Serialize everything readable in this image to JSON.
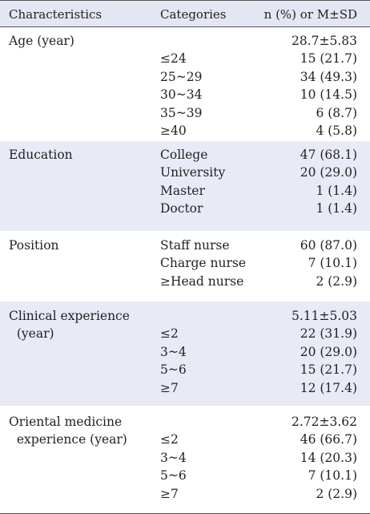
{
  "header": {
    "characteristics": "Characteristics",
    "categories": "Categories",
    "value": "n (%) or M±SD"
  },
  "groups": [
    {
      "shaded": false,
      "lines": [
        {
          "c1": "Age (year)",
          "c2": "",
          "c3": "28.7±5.83"
        },
        {
          "c1": "",
          "c2": "≤24",
          "c3": "15 (21.7)"
        },
        {
          "c1": "",
          "c2": "25~29",
          "c3": "34 (49.3)"
        },
        {
          "c1": "",
          "c2": "30~34",
          "c3": "10 (14.5)"
        },
        {
          "c1": "",
          "c2": "35~39",
          "c3": "6 (8.7)"
        },
        {
          "c1": "",
          "c2": "≥40",
          "c3": "4 (5.8)"
        }
      ]
    },
    {
      "shaded": true,
      "lines": [
        {
          "c1": "Education",
          "c2": "College",
          "c3": "47 (68.1)"
        },
        {
          "c1": "",
          "c2": "University",
          "c3": "20 (29.0)"
        },
        {
          "c1": "",
          "c2": "Master",
          "c3": "1 (1.4)"
        },
        {
          "c1": "",
          "c2": "Doctor",
          "c3": "1 (1.4)"
        }
      ]
    },
    {
      "shaded": false,
      "lines": [
        {
          "c1": "Position",
          "c2": "Staff nurse",
          "c3": "60 (87.0)"
        },
        {
          "c1": "",
          "c2": "Charge nurse",
          "c3": "7 (10.1)"
        },
        {
          "c1": "",
          "c2": "≥Head nurse",
          "c3": "2 (2.9)"
        }
      ]
    },
    {
      "shaded": true,
      "lines": [
        {
          "c1": "Clinical experience",
          "c2": "",
          "c3": "5.11±5.03"
        },
        {
          "c1": "  (year)",
          "c2": "≤2",
          "c3": "22 (31.9)"
        },
        {
          "c1": "",
          "c2": "3~4",
          "c3": "20 (29.0)"
        },
        {
          "c1": "",
          "c2": "5~6",
          "c3": "15 (21.7)"
        },
        {
          "c1": "",
          "c2": "≥7",
          "c3": "12 (17.4)"
        }
      ]
    },
    {
      "shaded": false,
      "lines": [
        {
          "c1": "Oriental medicine",
          "c2": "",
          "c3": "2.72±3.62"
        },
        {
          "c1": "  experience (year)",
          "c2": "≤2",
          "c3": "46 (66.7)"
        },
        {
          "c1": "",
          "c2": "3~4",
          "c3": "14 (20.3)"
        },
        {
          "c1": "",
          "c2": "5~6",
          "c3": "7 (10.1)"
        },
        {
          "c1": "",
          "c2": "≥7",
          "c3": "2 (2.9)"
        }
      ]
    }
  ]
}
